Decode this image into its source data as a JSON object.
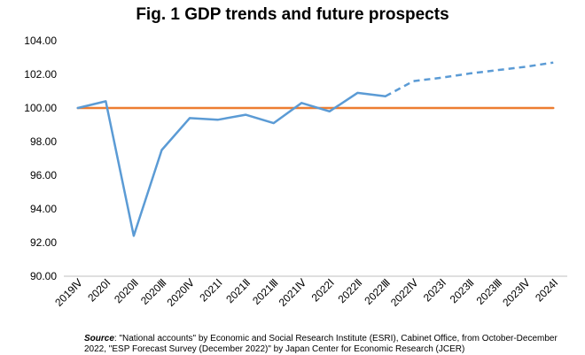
{
  "chart_data": {
    "type": "line",
    "title": "Fig. 1 GDP trends and future prospects",
    "categories": [
      "2019Ⅳ",
      "2020Ⅰ",
      "2020Ⅱ",
      "2020Ⅲ",
      "2020Ⅳ",
      "2021Ⅰ",
      "2021Ⅱ",
      "2021Ⅲ",
      "2021Ⅳ",
      "2022Ⅰ",
      "2022Ⅱ",
      "2022Ⅲ",
      "2022Ⅳ",
      "2023Ⅰ",
      "2023Ⅱ",
      "2023Ⅲ",
      "2023Ⅳ",
      "2024Ⅰ"
    ],
    "series": [
      {
        "color": "#5b9bd5",
        "values": [
          100.0,
          100.4,
          92.4,
          97.5,
          99.4,
          99.3,
          99.6,
          99.1,
          100.3,
          99.8,
          100.9,
          100.7,
          null,
          null,
          null,
          null,
          null,
          null
        ]
      },
      {
        "color": "#5b9bd5",
        "style": "dashed",
        "values": [
          null,
          null,
          null,
          null,
          null,
          null,
          null,
          null,
          null,
          null,
          null,
          100.7,
          101.6,
          101.8,
          102.05,
          102.25,
          102.45,
          102.7
        ]
      },
      {
        "color": "#ed7d31",
        "values": [
          100,
          100,
          100,
          100,
          100,
          100,
          100,
          100,
          100,
          100,
          100,
          100,
          100,
          100,
          100,
          100,
          100,
          100
        ]
      }
    ],
    "y_ticks": [
      "90.00",
      "92.00",
      "94.00",
      "96.00",
      "98.00",
      "100.00",
      "102.00",
      "104.00"
    ],
    "ylim": [
      90,
      104
    ],
    "grid": false
  },
  "source": {
    "label": "Source",
    "text": ": \"National accounts\" by Economic and Social Research Institute (ESRI), Cabinet Office, from October-December 2022, \"ESP Forecast Survey (December 2022)\" by Japan Center for Economic Research (JCER)"
  }
}
